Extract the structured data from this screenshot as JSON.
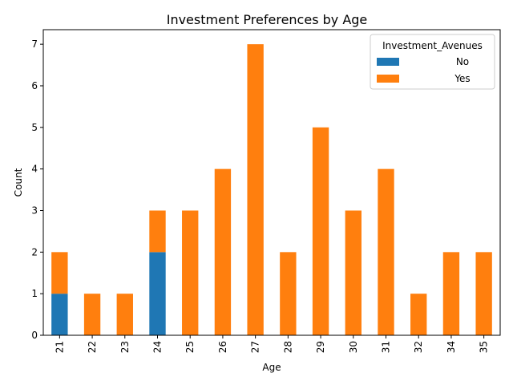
{
  "chart_data": {
    "type": "bar",
    "stacked": true,
    "title": "Investment Preferences by Age",
    "xlabel": "Age",
    "ylabel": "Count",
    "categories": [
      "21",
      "22",
      "23",
      "24",
      "25",
      "26",
      "27",
      "28",
      "29",
      "30",
      "31",
      "32",
      "34",
      "35"
    ],
    "series": [
      {
        "name": "No",
        "color": "#1f77b4",
        "values": [
          1,
          0,
          0,
          2,
          0,
          0,
          0,
          0,
          0,
          0,
          0,
          0,
          0,
          0
        ]
      },
      {
        "name": "Yes",
        "color": "#ff7f0e",
        "values": [
          1,
          1,
          1,
          1,
          3,
          4,
          7,
          2,
          5,
          3,
          4,
          1,
          2,
          2
        ]
      }
    ],
    "ylim": [
      0,
      7.35
    ],
    "yticks": [
      0,
      1,
      2,
      3,
      4,
      5,
      6,
      7
    ],
    "grid": false,
    "legend": {
      "title": "Investment_Avenues",
      "position": "top-right"
    }
  }
}
